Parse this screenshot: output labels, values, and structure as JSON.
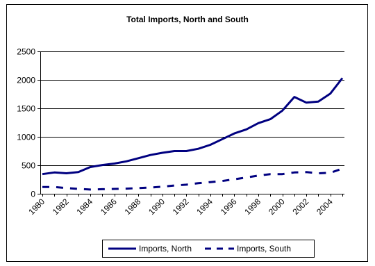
{
  "chart_data": {
    "type": "line",
    "title": "Total Imports, North and South",
    "xlabel": "",
    "ylabel": "",
    "x": [
      1980,
      1981,
      1982,
      1983,
      1984,
      1985,
      1986,
      1987,
      1988,
      1989,
      1990,
      1991,
      1992,
      1993,
      1994,
      1995,
      1996,
      1997,
      1998,
      1999,
      2000,
      2001,
      2002,
      2003,
      2004,
      2005
    ],
    "x_tick_labels": [
      "1980",
      "1982",
      "1984",
      "1986",
      "1988",
      "1990",
      "1992",
      "1994",
      "1996",
      "1998",
      "2000",
      "2002",
      "2004"
    ],
    "y_tick_labels": [
      "0",
      "500",
      "1000",
      "1500",
      "2000",
      "2500"
    ],
    "ylim": [
      0,
      2500
    ],
    "grid": "horizontal",
    "legend_position": "bottom",
    "series": [
      {
        "name": "Imports, North",
        "style": "solid",
        "color": "#000080",
        "values": [
          345,
          375,
          360,
          380,
          470,
          505,
          530,
          570,
          625,
          680,
          720,
          750,
          750,
          790,
          860,
          960,
          1060,
          1130,
          1240,
          1310,
          1460,
          1700,
          1600,
          1620,
          1760,
          2030
        ]
      },
      {
        "name": "Imports, South",
        "style": "dashed",
        "color": "#000080",
        "values": [
          120,
          120,
          100,
          85,
          75,
          80,
          85,
          90,
          100,
          110,
          125,
          145,
          160,
          185,
          205,
          225,
          255,
          285,
          320,
          345,
          345,
          375,
          380,
          360,
          370,
          440
        ]
      }
    ]
  }
}
